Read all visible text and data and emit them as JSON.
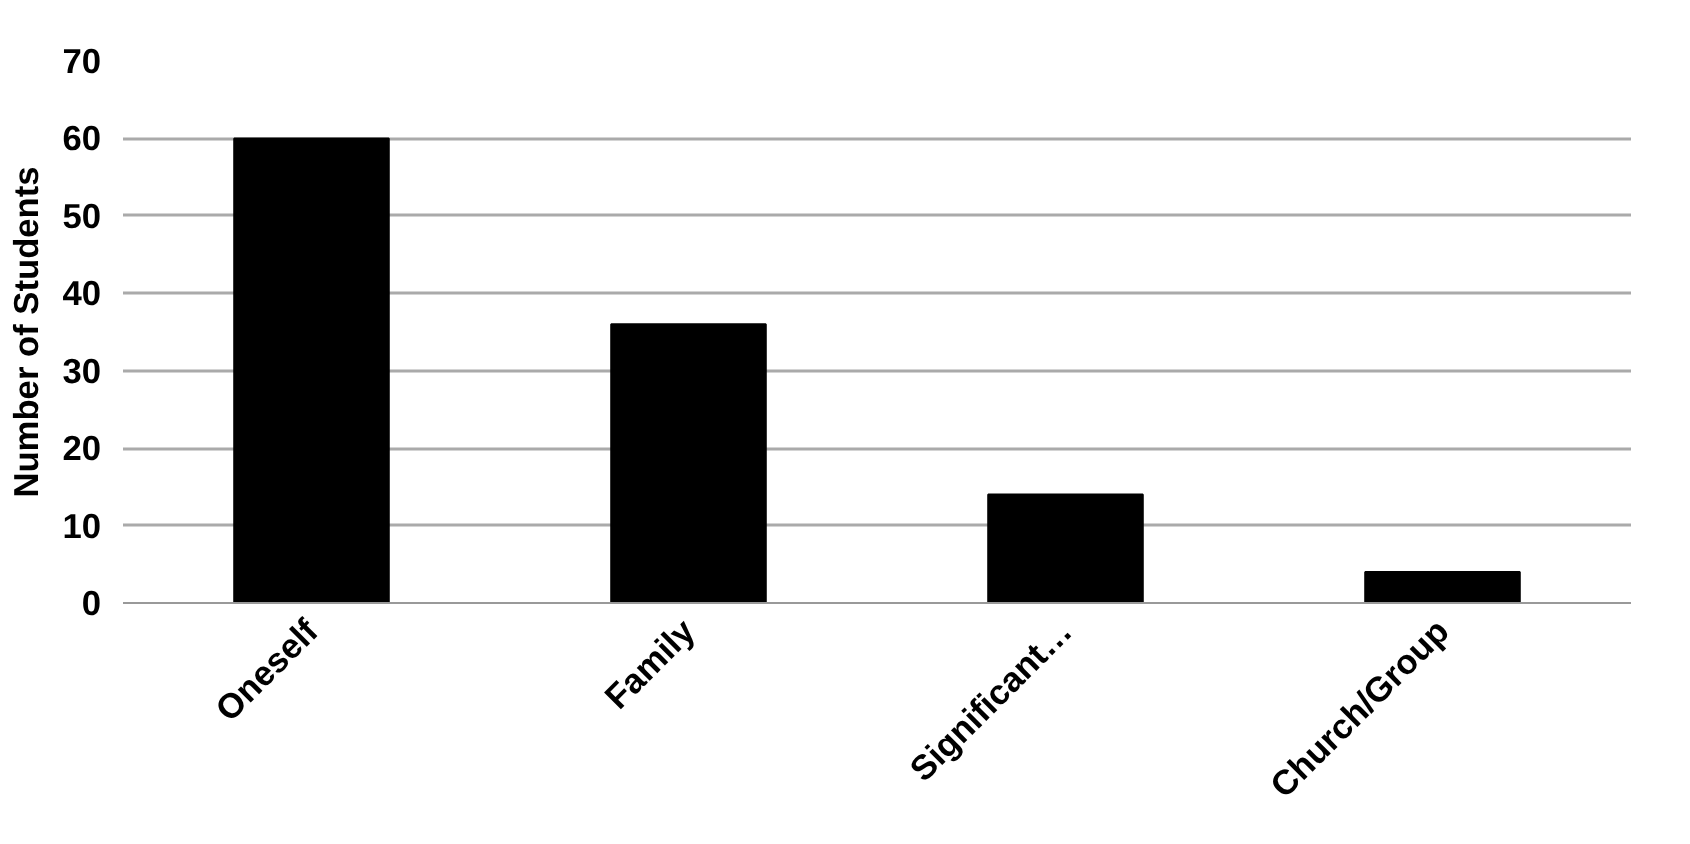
{
  "chart_data": {
    "type": "bar",
    "ylabel": "Number of Students",
    "categories": [
      "Oneself",
      "Family",
      "Significant…",
      "Church/Group"
    ],
    "values": [
      60,
      36,
      14,
      4
    ],
    "color": "#000000",
    "ylim": [
      0,
      70
    ],
    "yticks": [
      0,
      10,
      20,
      30,
      40,
      50,
      60,
      70
    ],
    "grid": "y"
  }
}
